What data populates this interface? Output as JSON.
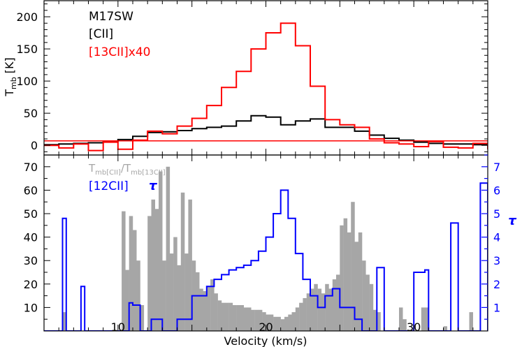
{
  "chart_data": [
    {
      "type": "line",
      "panel": "top",
      "source_label": "M17SW",
      "ylabel": "T_mb [K]",
      "ylim": [
        -15,
        225
      ],
      "xlim": [
        5,
        35
      ],
      "yticks": [
        0,
        50,
        100,
        150,
        200
      ],
      "series": [
        {
          "name": "[CII]",
          "color": "#000000",
          "style": "step",
          "x": [
            5,
            6,
            7,
            8,
            9,
            10,
            11,
            12,
            13,
            14,
            15,
            16,
            17,
            18,
            19,
            20,
            21,
            22,
            23,
            24,
            25,
            26,
            27,
            28,
            29,
            30,
            31,
            32,
            33,
            34,
            35
          ],
          "values": [
            1,
            2,
            3,
            4,
            6,
            9,
            14,
            20,
            21,
            23,
            26,
            28,
            30,
            38,
            46,
            44,
            32,
            38,
            41,
            28,
            28,
            22,
            16,
            11,
            8,
            5,
            3,
            2,
            2,
            1,
            0
          ]
        },
        {
          "name": "[13CII]x40",
          "color": "#ff0000",
          "style": "step",
          "x": [
            5,
            6,
            7,
            8,
            9,
            10,
            11,
            12,
            13,
            14,
            15,
            16,
            17,
            18,
            19,
            20,
            21,
            22,
            23,
            24,
            25,
            26,
            27,
            28,
            29,
            30,
            31,
            32,
            33,
            34,
            35
          ],
          "values": [
            0,
            -4,
            2,
            -8,
            5,
            -6,
            8,
            22,
            18,
            30,
            42,
            62,
            90,
            115,
            150,
            175,
            190,
            155,
            92,
            40,
            32,
            28,
            10,
            4,
            2,
            -2,
            6,
            -3,
            -4,
            3,
            -6
          ]
        },
        {
          "name": "baseline",
          "color": "#ff0000",
          "style": "hline",
          "values": [
            7
          ]
        }
      ]
    },
    {
      "type": "bar",
      "panel": "bottom",
      "xlabel": "Velocity (km/s)",
      "xlim": [
        5,
        35
      ],
      "xticks": [
        10,
        20,
        30
      ],
      "ylim_left": [
        0,
        75
      ],
      "yticks_left": [
        10,
        20,
        30,
        40,
        50,
        60,
        70
      ],
      "ylim_right": [
        0,
        7.5
      ],
      "yticks_right": [
        1,
        2,
        3,
        4,
        5,
        6,
        7
      ],
      "ylabel_right": "τ",
      "legend_ratio_label": "Tmb[CII]/Tmb[13CII]",
      "legend_tau_label": "[12CII]  τ",
      "series": [
        {
          "name": "T_mb[CII]/T_mb[13CII]",
          "color": "#a6a6a6",
          "axis": "left",
          "bin_width": 0.25,
          "x": [
            6.25,
            10.25,
            10.5,
            10.75,
            11.0,
            11.25,
            11.5,
            12.0,
            12.25,
            12.5,
            12.75,
            13.0,
            13.25,
            13.5,
            13.75,
            14.0,
            14.25,
            14.5,
            14.75,
            15.0,
            15.25,
            15.5,
            15.75,
            16.0,
            16.25,
            16.5,
            16.75,
            17.0,
            17.25,
            17.5,
            17.75,
            18.0,
            18.25,
            18.5,
            18.75,
            19.0,
            19.25,
            19.5,
            19.75,
            20.0,
            20.25,
            20.5,
            20.75,
            21.0,
            21.25,
            21.5,
            21.75,
            22.0,
            22.25,
            22.5,
            22.75,
            23.0,
            23.25,
            23.5,
            23.75,
            24.0,
            24.25,
            24.5,
            24.75,
            25.0,
            25.25,
            25.5,
            25.75,
            26.0,
            26.25,
            26.5,
            26.75,
            27.0,
            27.25,
            27.5,
            29.0,
            29.25,
            30.5,
            30.75,
            32.0,
            33.75
          ],
          "values": [
            8,
            51,
            26,
            49,
            43,
            30,
            11,
            49,
            56,
            52,
            68,
            30,
            70,
            33,
            40,
            28,
            59,
            33,
            56,
            30,
            25,
            18,
            17,
            19,
            22,
            16,
            13,
            12,
            12,
            12,
            11,
            11,
            11,
            10,
            10,
            9,
            9,
            9,
            8,
            7,
            7,
            6,
            6,
            5,
            6,
            7,
            8,
            10,
            12,
            14,
            16,
            18,
            20,
            18,
            16,
            20,
            18,
            22,
            24,
            45,
            48,
            42,
            55,
            38,
            42,
            30,
            24,
            20,
            9,
            8,
            10,
            5,
            10,
            10,
            2,
            8
          ]
        },
        {
          "name": "[12CII] τ",
          "color": "#0000ff",
          "axis": "right",
          "style": "step",
          "x": [
            5,
            6.25,
            6.5,
            7,
            7.5,
            7.75,
            8,
            10,
            10.75,
            11,
            11.5,
            12,
            12.25,
            12.5,
            13,
            14,
            15,
            16,
            16.5,
            17,
            17.5,
            18,
            18.5,
            19,
            19.5,
            20,
            20.5,
            21,
            21.5,
            22,
            22.5,
            23,
            23.5,
            24,
            24.5,
            25,
            26,
            26.5,
            27,
            27.5,
            28,
            29,
            30,
            30.75,
            31,
            32,
            32.5,
            33,
            34,
            34.5,
            35
          ],
          "values": [
            0,
            4.8,
            0,
            0,
            1.9,
            0,
            0,
            0,
            1.2,
            1.1,
            0,
            0,
            0.5,
            0.5,
            0,
            0.5,
            1.5,
            1.9,
            2.2,
            2.4,
            2.6,
            2.7,
            2.8,
            3.0,
            3.4,
            4.0,
            5.0,
            6.0,
            4.8,
            3.3,
            2.2,
            1.5,
            1.0,
            1.5,
            1.8,
            1.0,
            0.5,
            0,
            0,
            2.7,
            0,
            0,
            2.5,
            2.6,
            0,
            0,
            4.6,
            0,
            0,
            6.3,
            0
          ]
        }
      ]
    }
  ]
}
